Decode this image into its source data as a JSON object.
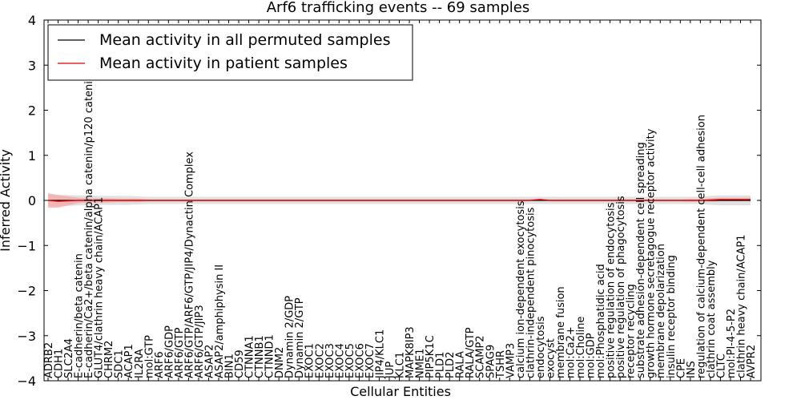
{
  "chart_data": {
    "type": "line",
    "title": "Arf6 trafficking events -- 69 samples",
    "xlabel": "Cellular Entities",
    "ylabel": "Inferred Activity",
    "ylim": [
      -4,
      4
    ],
    "yticks": [
      "4",
      "3",
      "2",
      "1",
      "0",
      "−1",
      "−2",
      "−3",
      "−4"
    ],
    "grid": false,
    "legend_position": "top-left",
    "categories": [
      "ADRB2",
      "CDH1",
      "SLC2A4",
      "E-cadherin/beta catenin",
      "E-cadherin/Ca2+/beta catenin/alpha catenin/p120 catenin",
      "GLUT4/clathrin heavy chain/ACAP1",
      "CHRM2",
      "SDC1",
      "ACAP1",
      "IL2RA",
      "mol:GTP",
      "ARF6",
      "ARF6/GDP",
      "ARF6/GTP",
      "ARF6/GTP/ARF6/GTP/JIP4/Dynactin Complex",
      "ARF6/GTP/JIP3",
      "ASAP2",
      "ASAP2/amphiphysin II",
      "BIN1",
      "CD59",
      "CTNNA1",
      "CTNNB1",
      "CTNND1",
      "DNM2",
      "Dynamin 2/GDP",
      "Dynamin 2/GTP",
      "EXOC1",
      "EXOC2",
      "EXOC3",
      "EXOC4",
      "EXOC5",
      "EXOC6",
      "EXOC7",
      "JIP4/KLC1",
      "JUP",
      "KLC1",
      "MAPK8IP3",
      "NME1",
      "PIP5K1C",
      "PLD1",
      "PLD2",
      "RALA",
      "RALA/GTP",
      "SCAMP2",
      "SPAG9",
      "TSHR",
      "VAMP3",
      "calcium ion-dependent exocytosis",
      "clathrin-independent pinocytosis",
      "endocytosis",
      "exocyst",
      "membrane fusion",
      "mol:Ca2+",
      "mol:Choline",
      "mol:GDP",
      "mol:Phosphatidic acid",
      "positive regulation of endocytosis",
      "positive regulation of phagocytosis",
      "receptor recycling",
      "substrate adhesion-dependent cell spreading",
      "growth hormone secretagogue receptor activity",
      "membrane depolarization",
      "insulin receptor binding",
      "CPE",
      "INS",
      "regulation of calcium-dependent cell-cell adhesion",
      "clathrin coat assembly",
      "CLTC",
      "mol:PI-4-5-P2",
      "clathrin heavy chain/ACAP1",
      "AVPR2"
    ],
    "series": [
      {
        "name": "Mean activity in all permuted samples",
        "color": "#000000",
        "band_color": "#d9d9d9",
        "values": [
          0.0,
          0.0,
          0.0,
          0.0,
          0.0,
          0.0,
          0.0,
          0.0,
          0.0,
          0.0,
          0.0,
          0.0,
          0.0,
          0.0,
          0.0,
          0.0,
          0.0,
          0.0,
          0.0,
          0.0,
          0.0,
          0.0,
          0.0,
          0.0,
          0.0,
          0.0,
          0.0,
          0.0,
          0.0,
          0.0,
          0.0,
          0.0,
          0.0,
          0.0,
          0.0,
          0.0,
          0.0,
          0.0,
          0.0,
          0.0,
          0.0,
          0.0,
          0.0,
          0.0,
          0.0,
          0.0,
          0.0,
          0.0,
          0.0,
          0.0,
          0.0,
          0.0,
          0.0,
          0.0,
          0.0,
          0.0,
          0.0,
          0.0,
          0.0,
          0.0,
          0.0,
          0.0,
          0.0,
          0.0,
          0.0,
          0.0,
          0.0,
          0.0,
          0.0,
          0.0,
          0.0
        ],
        "band": [
          0.12,
          0.12,
          0.12,
          0.11,
          0.11,
          0.1,
          0.1,
          0.1,
          0.1,
          0.09,
          0.08,
          0.08,
          0.08,
          0.08,
          0.08,
          0.08,
          0.08,
          0.08,
          0.08,
          0.08,
          0.08,
          0.08,
          0.08,
          0.08,
          0.08,
          0.08,
          0.08,
          0.08,
          0.08,
          0.08,
          0.08,
          0.08,
          0.08,
          0.08,
          0.08,
          0.08,
          0.08,
          0.08,
          0.08,
          0.08,
          0.08,
          0.08,
          0.08,
          0.08,
          0.08,
          0.08,
          0.08,
          0.08,
          0.08,
          0.08,
          0.08,
          0.08,
          0.08,
          0.08,
          0.08,
          0.08,
          0.08,
          0.08,
          0.08,
          0.08,
          0.08,
          0.08,
          0.08,
          0.08,
          0.08,
          0.08,
          0.1,
          0.11,
          0.11,
          0.11,
          0.11
        ]
      },
      {
        "name": "Mean activity in patient samples",
        "color": "#e00000",
        "band_color": "#f4a6a6",
        "values": [
          0.0,
          -0.02,
          -0.01,
          0.0,
          0.0,
          0.0,
          0.0,
          0.0,
          0.0,
          0.0,
          0.0,
          0.0,
          0.0,
          0.0,
          0.0,
          0.0,
          0.0,
          0.0,
          0.0,
          0.0,
          0.0,
          0.0,
          0.0,
          0.0,
          0.0,
          0.0,
          0.0,
          0.0,
          0.0,
          0.0,
          0.0,
          0.0,
          0.0,
          0.0,
          0.0,
          0.0,
          0.0,
          0.0,
          0.0,
          0.0,
          0.0,
          0.0,
          0.0,
          0.0,
          0.0,
          0.0,
          0.0,
          0.0,
          0.0,
          0.02,
          0.0,
          0.0,
          0.0,
          0.0,
          0.0,
          0.0,
          0.0,
          0.0,
          0.0,
          0.0,
          0.0,
          0.0,
          0.0,
          0.0,
          0.0,
          0.0,
          0.01,
          0.02,
          0.02,
          0.02,
          0.02
        ],
        "band": [
          0.16,
          0.14,
          0.1,
          0.06,
          0.05,
          0.05,
          0.05,
          0.04,
          0.04,
          0.04,
          0.02,
          0.02,
          0.02,
          0.02,
          0.02,
          0.02,
          0.02,
          0.02,
          0.02,
          0.02,
          0.02,
          0.02,
          0.02,
          0.02,
          0.02,
          0.02,
          0.02,
          0.02,
          0.02,
          0.02,
          0.02,
          0.02,
          0.02,
          0.02,
          0.02,
          0.02,
          0.02,
          0.02,
          0.02,
          0.02,
          0.02,
          0.02,
          0.02,
          0.02,
          0.02,
          0.02,
          0.02,
          0.02,
          0.02,
          0.02,
          0.02,
          0.02,
          0.02,
          0.02,
          0.02,
          0.02,
          0.02,
          0.02,
          0.02,
          0.02,
          0.02,
          0.02,
          0.02,
          0.02,
          0.03,
          0.03,
          0.04,
          0.04,
          0.04,
          0.04,
          0.04
        ]
      }
    ]
  }
}
